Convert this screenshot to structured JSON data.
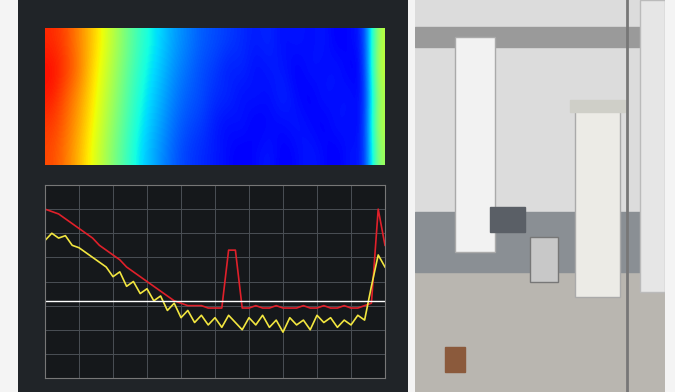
{
  "spectrogram": {
    "type": "heatmap",
    "clim": [
      -130,
      -70
    ],
    "cells": [
      [
        -78,
        -80,
        -84,
        -88,
        -93,
        -98,
        -103,
        -107,
        -110,
        -113,
        -115,
        -117,
        -118,
        -119,
        -120,
        -121,
        -120,
        -122,
        -121,
        -122,
        -121,
        -123,
        -122,
        -121,
        -95
      ],
      [
        -76,
        -79,
        -83,
        -89,
        -94,
        -99,
        -104,
        -108,
        -111,
        -114,
        -116,
        -118,
        -119,
        -121,
        -120,
        -122,
        -121,
        -121,
        -123,
        -121,
        -122,
        -121,
        -123,
        -122,
        -94
      ],
      [
        -77,
        -81,
        -85,
        -90,
        -95,
        -100,
        -105,
        -109,
        -112,
        -115,
        -117,
        -118,
        -120,
        -120,
        -122,
        -121,
        -122,
        -120,
        -122,
        -123,
        -121,
        -122,
        -121,
        -123,
        -96
      ],
      [
        -79,
        -82,
        -86,
        -91,
        -96,
        -101,
        -106,
        -110,
        -113,
        -116,
        -118,
        -119,
        -121,
        -122,
        -121,
        -123,
        -122,
        -122,
        -121,
        -122,
        -123,
        -121,
        -122,
        -122,
        -95
      ],
      [
        -80,
        -83,
        -87,
        -92,
        -97,
        -102,
        -107,
        -111,
        -114,
        -117,
        -119,
        -120,
        -121,
        -122,
        -123,
        -122,
        -121,
        -123,
        -122,
        -121,
        -122,
        -123,
        -121,
        -122,
        -97
      ]
    ]
  },
  "chart_data": {
    "type": "line",
    "grid": true,
    "tick_labels": false,
    "xlim": [
      0,
      100
    ],
    "xticks": [
      0,
      10,
      20,
      30,
      40,
      50,
      60,
      70,
      80,
      90,
      100
    ],
    "ylim": [
      -150,
      -70
    ],
    "yticks": [
      -150,
      -140,
      -130,
      -120,
      -110,
      -100,
      -90,
      -80,
      -70
    ],
    "display_line": -118,
    "x": [
      0,
      2,
      4,
      6,
      8,
      10,
      12,
      14,
      16,
      18,
      20,
      22,
      24,
      26,
      28,
      30,
      32,
      34,
      36,
      38,
      40,
      42,
      44,
      46,
      48,
      50,
      52,
      54,
      56,
      58,
      60,
      62,
      64,
      66,
      68,
      70,
      72,
      74,
      76,
      78,
      80,
      82,
      84,
      86,
      88,
      90,
      92,
      94,
      96,
      98,
      100
    ],
    "series": [
      {
        "color": "#e0202a",
        "values": [
          -80,
          -81,
          -82,
          -84,
          -86,
          -88,
          -90,
          -92,
          -95,
          -97,
          -99,
          -101,
          -104,
          -106,
          -108,
          -110,
          -112,
          -114,
          -116,
          -118,
          -119,
          -120,
          -120,
          -120,
          -121,
          -121,
          -121,
          -97,
          -97,
          -121,
          -121,
          -120,
          -121,
          -121,
          -120,
          -121,
          -121,
          -121,
          -120,
          -121,
          -121,
          -120,
          -121,
          -121,
          -120,
          -121,
          -121,
          -120,
          -119,
          -80,
          -95
        ]
      },
      {
        "color": "#f2e640",
        "values": [
          -93,
          -90,
          -92,
          -91,
          -95,
          -96,
          -98,
          -100,
          -102,
          -104,
          -108,
          -106,
          -112,
          -110,
          -115,
          -113,
          -118,
          -116,
          -122,
          -119,
          -125,
          -122,
          -127,
          -124,
          -128,
          -125,
          -129,
          -124,
          -127,
          -130,
          -125,
          -128,
          -124,
          -129,
          -126,
          -131,
          -125,
          -128,
          -126,
          -130,
          -124,
          -127,
          -125,
          -129,
          -126,
          -128,
          -124,
          -126,
          -112,
          -99,
          -104
        ]
      }
    ]
  }
}
